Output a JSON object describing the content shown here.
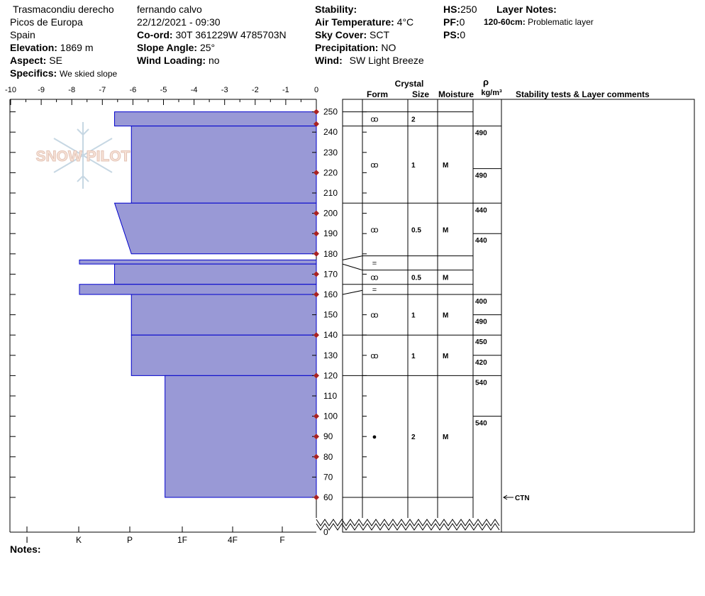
{
  "header": {
    "col1": {
      "location": "Trasmacondiu derecho",
      "region": "Picos de Europa",
      "country": "Spain",
      "elevation_label": "Elevation:",
      "elevation": "1869 m",
      "aspect_label": "Aspect:",
      "aspect": "SE",
      "specifics_label": "Specifics:",
      "specifics": "We skied slope"
    },
    "col2": {
      "observer": "fernando calvo",
      "datetime": "22/12/2021 - 09:30",
      "coord_label": "Co-ord:",
      "coord": "30T 361229W 4785703N",
      "slope_label": "Slope Angle:",
      "slope": "25°",
      "wind_loading_label": "Wind Loading:",
      "wind_loading": "no"
    },
    "col3": {
      "stability_label": "Stability:",
      "air_temp_label": "Air Temperature:",
      "air_temp": "4°C",
      "sky_label": "Sky Cover:",
      "sky": "SCT",
      "precip_label": "Precipitation:",
      "precip": "NO",
      "wind_label": "Wind:",
      "wind": "SW Light Breeze"
    },
    "col4": {
      "hs_label": "HS:",
      "hs": "250",
      "pf_label": "PF:",
      "pf": "0",
      "ps_label": "PS:",
      "ps": "0"
    },
    "layer_notes_label": "Layer Notes:",
    "layer_note_range": "120-60cm:",
    "layer_note_text": "Problematic layer",
    "notes_label": "Notes:"
  },
  "watermark": "SNOW PILOT",
  "chart_data": {
    "type": "snow-profile",
    "temp_axis": {
      "ticks": [
        "-10",
        "-9",
        "-8",
        "-7",
        "-6",
        "-5",
        "-4",
        "-3",
        "-2",
        "-1",
        "0"
      ],
      "range": [
        -10,
        0
      ]
    },
    "hardness_axis": {
      "labels": [
        "I",
        "K",
        "P",
        "1F",
        "4F",
        "F"
      ]
    },
    "height_axis": {
      "ticks": [
        "250",
        "240",
        "230",
        "220",
        "210",
        "200",
        "190",
        "180",
        "170",
        "160",
        "150",
        "140",
        "130",
        "120",
        "110",
        "100",
        "90",
        "80",
        "70",
        "60",
        "0"
      ],
      "range_cm": [
        60,
        250
      ]
    },
    "temperature_points_cm": [
      250,
      244,
      220,
      200,
      190,
      180,
      170,
      160,
      140,
      120,
      100,
      90,
      80,
      60
    ],
    "hardness_layers": [
      {
        "top": 250,
        "bottom": 243,
        "left_top": -6.6,
        "left_bottom": -6.6
      },
      {
        "top": 243,
        "bottom": 205,
        "left_top": -6.05,
        "left_bottom": -6.05
      },
      {
        "top": 205,
        "bottom": 180,
        "left_top": -6.6,
        "left_bottom": -6.05
      },
      {
        "top": 177,
        "bottom": 175,
        "left_top": -7.75,
        "left_bottom": -7.75
      },
      {
        "top": 175,
        "bottom": 165,
        "left_top": -6.6,
        "left_bottom": -6.6
      },
      {
        "top": 165,
        "bottom": 160,
        "left_top": -7.75,
        "left_bottom": -7.75
      },
      {
        "top": 160,
        "bottom": 140,
        "left_top": -6.05,
        "left_bottom": -6.05
      },
      {
        "top": 140,
        "bottom": 120,
        "left_top": -6.05,
        "left_bottom": -6.05
      },
      {
        "top": 120,
        "bottom": 60,
        "left_top": -4.95,
        "left_bottom": -4.95
      }
    ],
    "columns": {
      "crystal_title": "Crystal",
      "form": "Form",
      "size": "Size",
      "moisture": "Moisture",
      "rho": "ρ",
      "density_unit": "kg/m³",
      "comments": "Stability tests & Layer comments"
    },
    "layer_boundaries_cm": [
      250,
      243,
      205,
      179,
      172,
      165,
      160,
      140,
      120,
      60
    ],
    "layer_rows": [
      {
        "top": 250,
        "bottom": 243,
        "form": "ꝏ",
        "size": "2",
        "moisture": ""
      },
      {
        "top": 243,
        "bottom": 205,
        "form": "ꝏ",
        "size": "1",
        "moisture": "M"
      },
      {
        "top": 205,
        "bottom": 179,
        "form": "ꝏ",
        "size": "0.5",
        "moisture": "M"
      },
      {
        "top": 179,
        "bottom": 172,
        "form": "=",
        "size": "",
        "moisture": ""
      },
      {
        "top": 172,
        "bottom": 165,
        "form": "ꝏ",
        "size": "0.5",
        "moisture": "M"
      },
      {
        "top": 165,
        "bottom": 160,
        "form": "=",
        "size": "",
        "moisture": ""
      },
      {
        "top": 160,
        "bottom": 140,
        "form": "ꝏ",
        "size": "1",
        "moisture": "M"
      },
      {
        "top": 140,
        "bottom": 120,
        "form": "ꝏ",
        "size": "1",
        "moisture": "M"
      },
      {
        "top": 120,
        "bottom": 60,
        "form": "●",
        "size": "2",
        "moisture": "M"
      }
    ],
    "densities": [
      {
        "top": 243,
        "bottom": 222,
        "value": "490"
      },
      {
        "top": 222,
        "bottom": 205,
        "value": "490"
      },
      {
        "top": 205,
        "bottom": 190,
        "value": "440"
      },
      {
        "top": 190,
        "bottom": 160,
        "value": "440"
      },
      {
        "top": 160,
        "bottom": 150,
        "value": "400"
      },
      {
        "top": 150,
        "bottom": 140,
        "value": "490"
      },
      {
        "top": 140,
        "bottom": 130,
        "value": "450"
      },
      {
        "top": 130,
        "bottom": 120,
        "value": "420"
      },
      {
        "top": 120,
        "bottom": 100,
        "value": "540"
      },
      {
        "top": 100,
        "bottom": 60,
        "value": "540"
      }
    ],
    "stability_tests": [
      {
        "height": 60,
        "result": "CTN"
      }
    ],
    "colors": {
      "fill": "#9999d6",
      "stroke": "#0000cc",
      "temp_marker": "#aa2222"
    }
  }
}
